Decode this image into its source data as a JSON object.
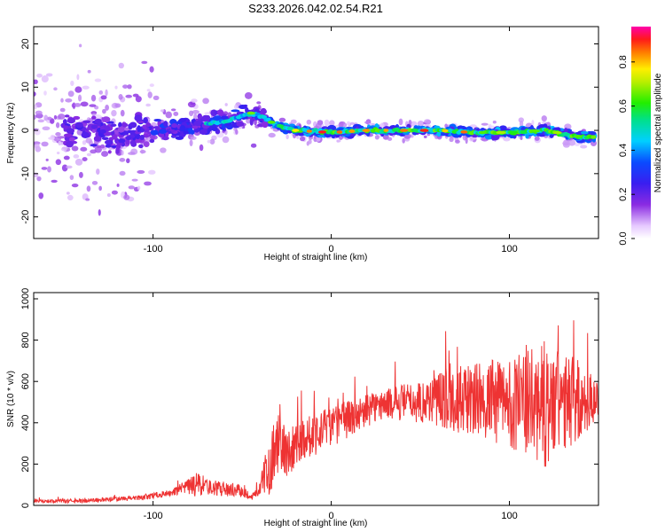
{
  "figure": {
    "title": "S233.2026.042.02.54.R21"
  },
  "chart_data": [
    {
      "type": "heatmap",
      "xlabel": "Height of straight line (km)",
      "ylabel": "Frequency (Hz)",
      "xlim": [
        -167,
        150
      ],
      "ylim": [
        -25,
        24
      ],
      "x_ticks": [
        -100,
        0,
        100
      ],
      "y_ticks": [
        -20,
        -10,
        0,
        10,
        20
      ],
      "grid": false,
      "colorbar": {
        "label": "Normalized spectral amplitude",
        "range": [
          0,
          0.96
        ],
        "ticks": [
          0.0,
          0.2,
          0.4,
          0.6,
          0.8
        ],
        "colormap": "rainbow (white-purple-blue-cyan-green-yellow-red-magenta)"
      },
      "ridge": {
        "x": [
          -160,
          -140,
          -120,
          -100,
          -80,
          -60,
          -45,
          -38,
          -30,
          -20,
          0,
          20,
          40,
          60,
          80,
          100,
          120,
          140,
          148
        ],
        "frequency": [
          0,
          0,
          -1,
          0,
          1,
          2,
          4,
          3,
          1,
          0,
          -0.5,
          0,
          0,
          0,
          -0.5,
          -0.5,
          0,
          -1.5,
          -1.5
        ]
      },
      "peak_amplitude_region_x": [
        -30,
        150
      ]
    },
    {
      "type": "line",
      "xlabel": "Height of straight line (km)",
      "ylabel": "SNR (10 * v/v)",
      "xlim": [
        -167,
        150
      ],
      "ylim": [
        0,
        1030
      ],
      "x_ticks": [
        -100,
        0,
        100
      ],
      "y_ticks": [
        0,
        200,
        400,
        600,
        800,
        1000
      ],
      "grid": false,
      "color": "#ee3333",
      "envelope": {
        "x": [
          -167,
          -140,
          -110,
          -90,
          -80,
          -75,
          -70,
          -50,
          -45,
          -40,
          -35,
          -30,
          -25,
          -20,
          -10,
          0,
          10,
          20,
          30,
          40,
          50,
          60,
          80,
          100,
          120,
          140,
          150
        ],
        "baseline": [
          20,
          22,
          35,
          60,
          90,
          100,
          90,
          70,
          40,
          80,
          200,
          300,
          250,
          300,
          350,
          380,
          420,
          460,
          490,
          500,
          500,
          520,
          510,
          500,
          480,
          500,
          520
        ],
        "amplitude": [
          8,
          10,
          12,
          15,
          40,
          70,
          40,
          30,
          15,
          30,
          150,
          160,
          120,
          110,
          110,
          100,
          90,
          80,
          70,
          90,
          100,
          140,
          180,
          220,
          300,
          200,
          80
        ]
      }
    }
  ]
}
